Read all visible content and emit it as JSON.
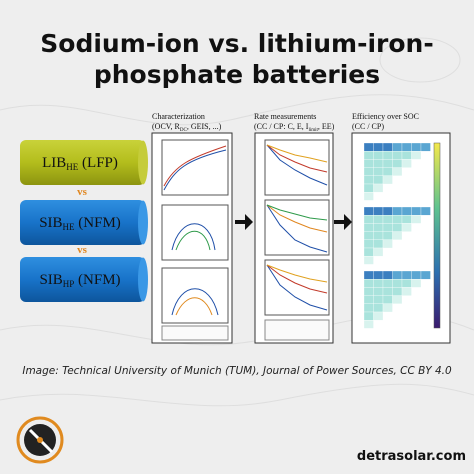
{
  "header": {
    "title_line1": "Sodium-ion vs. lithium-iron-",
    "title_line2": "phosphate batteries"
  },
  "batteries": [
    {
      "main": "LIB",
      "sub": "HE",
      "rest": " (LFP)"
    },
    {
      "main": "SIB",
      "sub": "HE",
      "rest": " (NFM)"
    },
    {
      "main": "SIB",
      "sub": "HP",
      "rest": " (NFM)"
    }
  ],
  "separators": [
    "vs",
    "vs"
  ],
  "panels": [
    {
      "title": "Characterization",
      "subtitle_a": "(OCV, R",
      "subtitle_sub": "DC",
      "subtitle_b": ", GEIS, ...)"
    },
    {
      "title": "Rate measurements",
      "subtitle_a": "(CC / CP: C, E, I",
      "subtitle_sub": "limit",
      "subtitle_b": ", EE)"
    },
    {
      "title": "Efficiency over SOC",
      "subtitle_a": "(CC / CP)",
      "subtitle_sub": "",
      "subtitle_b": ""
    }
  ],
  "caption": "Image: Technical University of Munich (TUM), Journal of Power Sources, CC BY 4.0",
  "brand": "detrasolar.com"
}
